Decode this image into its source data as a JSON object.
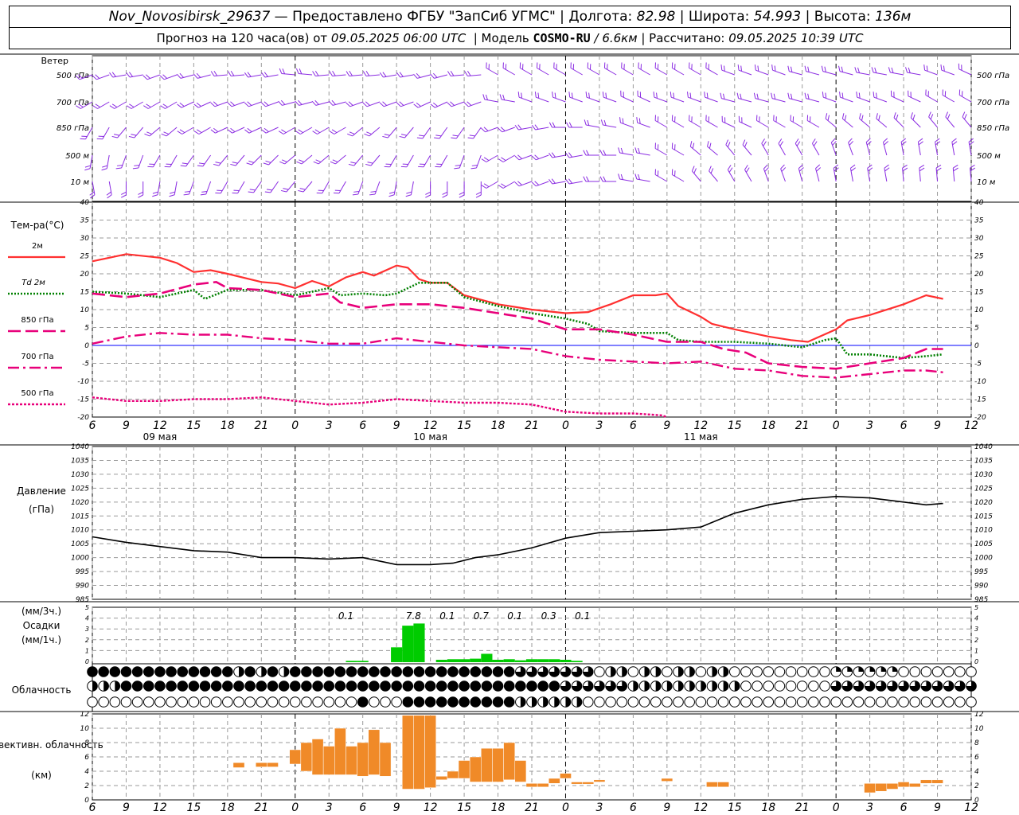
{
  "header": {
    "station": "Nov_Novosibirsk_29637",
    "provider": "— Предоставлено ФГБУ \"ЗапСиб УГМС\"",
    "lon_label": "Долгота:",
    "lon": "82.98",
    "lat_label": "Широта:",
    "lat": "54.993",
    "alt_label": "Высота:",
    "alt": "136м",
    "forecast_label": "Прогноз на 120 часа(ов) от",
    "forecast_start": "09.05.2025 06:00 UTC",
    "model_label": "Модель",
    "model": "COSMO-RU",
    "resolution": "/ 6.6км",
    "computed_label": "Рассчитано:",
    "computed": "09.05.2025 10:39 UTC"
  },
  "colors": {
    "temp2m": "#ff3030",
    "td2m": "#008000",
    "magenta": "#e8007a",
    "wind": "#8a2be2",
    "pressure": "#000000",
    "precip": "#00cc00",
    "convective": "#f08a28",
    "zero_line": "#0000ff",
    "grid": "#9a9a9a"
  },
  "chart_data": [
    {
      "type": "wind_barbs",
      "panel_label": "Ветер",
      "levels": [
        "500 гПа",
        "700 гПа",
        "850 гПа",
        "500 м",
        "10 м"
      ]
    },
    {
      "type": "line",
      "ylabel": "Тем-ра(°С)",
      "ylim": [
        -20,
        40
      ],
      "yticks": [
        -20,
        -15,
        -10,
        -5,
        0,
        5,
        10,
        15,
        20,
        25,
        30,
        35,
        40
      ],
      "x_hours": [
        6,
        9,
        12,
        15,
        18,
        21,
        0,
        3,
        6,
        9,
        12,
        15,
        18,
        21,
        0,
        3,
        6,
        9,
        12,
        15,
        18,
        21,
        0,
        3,
        6,
        9,
        12
      ],
      "x_start_hour_offset": 6,
      "dates": [
        {
          "label": "09 мая",
          "hour": 12
        },
        {
          "label": "10 мая",
          "hour": 36
        },
        {
          "label": "11 мая",
          "hour": 60
        }
      ],
      "series": [
        {
          "name": "2м",
          "style": "solid",
          "color": "#ff3030",
          "points": [
            [
              6,
              23.5
            ],
            [
              9,
              25.5
            ],
            [
              12,
              24.5
            ],
            [
              13.5,
              23
            ],
            [
              15,
              20.5
            ],
            [
              16.5,
              21
            ],
            [
              18,
              20
            ],
            [
              21,
              17.7
            ],
            [
              22.5,
              17.3
            ],
            [
              24,
              16
            ],
            [
              25.5,
              18
            ],
            [
              27,
              16.5
            ],
            [
              28.5,
              19
            ],
            [
              30,
              20.5
            ],
            [
              31,
              19.5
            ],
            [
              33,
              22.3
            ],
            [
              34,
              21.7
            ],
            [
              35,
              18.5
            ],
            [
              36,
              17.5
            ],
            [
              37.5,
              17.5
            ],
            [
              39,
              14
            ],
            [
              42,
              11.5
            ],
            [
              45,
              10
            ],
            [
              48,
              9
            ],
            [
              50,
              9.3
            ],
            [
              52,
              11.5
            ],
            [
              54,
              14
            ],
            [
              56,
              14
            ],
            [
              57,
              14.5
            ],
            [
              58,
              11
            ],
            [
              60,
              8
            ],
            [
              61,
              6
            ],
            [
              63,
              4.5
            ],
            [
              66,
              2.5
            ],
            [
              68,
              1.5
            ],
            [
              69.5,
              1
            ],
            [
              72,
              4.5
            ],
            [
              73,
              7
            ],
            [
              75,
              8.5
            ],
            [
              78,
              11.5
            ],
            [
              80,
              14
            ],
            [
              81.5,
              13
            ]
          ]
        },
        {
          "name": "Td 2м",
          "style": "dotted",
          "color": "#008000",
          "points": [
            [
              6,
              15
            ],
            [
              9,
              14.5
            ],
            [
              12,
              13.5
            ],
            [
              15,
              15.5
            ],
            [
              16,
              13
            ],
            [
              18,
              15.5
            ],
            [
              21,
              15.5
            ],
            [
              24,
              14
            ],
            [
              27,
              16
            ],
            [
              28,
              14
            ],
            [
              30,
              14.5
            ],
            [
              32,
              14
            ],
            [
              33,
              14.5
            ],
            [
              35,
              17.5
            ],
            [
              37.5,
              17.5
            ],
            [
              39,
              13.5
            ],
            [
              42,
              11
            ],
            [
              45,
              9
            ],
            [
              48,
              7.5
            ],
            [
              50,
              6
            ],
            [
              51,
              4
            ],
            [
              54,
              3.5
            ],
            [
              57,
              3.5
            ],
            [
              58,
              1.5
            ],
            [
              60,
              1
            ],
            [
              63,
              1
            ],
            [
              66,
              0.5
            ],
            [
              69,
              -0.5
            ],
            [
              71,
              1.5
            ],
            [
              72,
              2
            ],
            [
              73,
              -2.5
            ],
            [
              75,
              -2.5
            ],
            [
              78,
              -3.5
            ],
            [
              80,
              -3
            ],
            [
              81.5,
              -2.5
            ]
          ]
        },
        {
          "name": "850 гПа",
          "style": "longdash",
          "color": "#e8007a",
          "points": [
            [
              6,
              14.5
            ],
            [
              9,
              13.5
            ],
            [
              12,
              14.5
            ],
            [
              15,
              17
            ],
            [
              17,
              17.7
            ],
            [
              18,
              16
            ],
            [
              21,
              15.5
            ],
            [
              24,
              13.5
            ],
            [
              27,
              14.5
            ],
            [
              28,
              12
            ],
            [
              30,
              10.5
            ],
            [
              33,
              11.5
            ],
            [
              36,
              11.5
            ],
            [
              39,
              10.5
            ],
            [
              42,
              9
            ],
            [
              45,
              7.5
            ],
            [
              48,
              4.5
            ],
            [
              51,
              4.5
            ],
            [
              54,
              3
            ],
            [
              57,
              1
            ],
            [
              60,
              1
            ],
            [
              62,
              -1
            ],
            [
              64,
              -2
            ],
            [
              66,
              -5
            ],
            [
              69,
              -6
            ],
            [
              72,
              -6.5
            ],
            [
              75,
              -5
            ],
            [
              78,
              -3.5
            ],
            [
              80,
              -1
            ],
            [
              81.5,
              -1
            ]
          ]
        },
        {
          "name": "700 гПа",
          "style": "dashdot",
          "color": "#e8007a",
          "points": [
            [
              6,
              0.5
            ],
            [
              9,
              2.5
            ],
            [
              12,
              3.5
            ],
            [
              15,
              3
            ],
            [
              18,
              3
            ],
            [
              21,
              2
            ],
            [
              24,
              1.5
            ],
            [
              27,
              0.5
            ],
            [
              30,
              0.5
            ],
            [
              33,
              2
            ],
            [
              36,
              1
            ],
            [
              39,
              0
            ],
            [
              42,
              -0.5
            ],
            [
              45,
              -1
            ],
            [
              48,
              -3
            ],
            [
              51,
              -4
            ],
            [
              54,
              -4.5
            ],
            [
              57,
              -5
            ],
            [
              60,
              -4.5
            ],
            [
              63,
              -6.5
            ],
            [
              66,
              -7
            ],
            [
              69,
              -8.5
            ],
            [
              72,
              -9
            ],
            [
              75,
              -8
            ],
            [
              78,
              -7
            ],
            [
              80,
              -7
            ],
            [
              81.5,
              -7.5
            ]
          ]
        },
        {
          "name": "500 гПа",
          "style": "dotted_dense",
          "color": "#e8007a",
          "points": [
            [
              6,
              -14.5
            ],
            [
              9,
              -15.5
            ],
            [
              12,
              -15.5
            ],
            [
              15,
              -15
            ],
            [
              18,
              -15
            ],
            [
              21,
              -14.5
            ],
            [
              24,
              -15.5
            ],
            [
              27,
              -16.5
            ],
            [
              30,
              -16
            ],
            [
              33,
              -15
            ],
            [
              36,
              -15.5
            ],
            [
              39,
              -16
            ],
            [
              42,
              -16
            ],
            [
              45,
              -16.5
            ],
            [
              48,
              -18.5
            ],
            [
              51,
              -19
            ],
            [
              54,
              -19
            ],
            [
              56.5,
              -19.5
            ],
            [
              57,
              -20
            ]
          ]
        }
      ]
    },
    {
      "type": "line",
      "ylabel": "Давление",
      "yunit": "(гПа)",
      "ylim": [
        985,
        1040
      ],
      "yticks": [
        985,
        990,
        995,
        1000,
        1005,
        1010,
        1015,
        1020,
        1025,
        1030,
        1035,
        1040
      ],
      "series": [
        {
          "name": "",
          "points": [
            [
              6,
              1007.5
            ],
            [
              9,
              1005.5
            ],
            [
              12,
              1004
            ],
            [
              15,
              1002.5
            ],
            [
              18,
              1002
            ],
            [
              21,
              1000
            ],
            [
              24,
              1000
            ],
            [
              27,
              999.5
            ],
            [
              30,
              1000
            ],
            [
              33,
              997.5
            ],
            [
              36,
              997.5
            ],
            [
              38,
              998
            ],
            [
              40,
              1000
            ],
            [
              42,
              1001
            ],
            [
              45,
              1003.5
            ],
            [
              48,
              1007
            ],
            [
              51,
              1009
            ],
            [
              54,
              1009.5
            ],
            [
              57,
              1010
            ],
            [
              60,
              1011
            ],
            [
              63,
              1016
            ],
            [
              66,
              1019
            ],
            [
              69,
              1021
            ],
            [
              72,
              1022
            ],
            [
              75,
              1021.5
            ],
            [
              78,
              1020
            ],
            [
              80,
              1019
            ],
            [
              81.5,
              1019.5
            ]
          ]
        }
      ]
    },
    {
      "type": "bar",
      "ylabel": "Осадки",
      "yunit_top": "(мм/3ч.)",
      "yunit_bottom": "(мм/1ч.)",
      "ylim": [
        0,
        5
      ],
      "yticks": [
        0,
        1,
        2,
        3,
        4,
        5
      ],
      "three_hour_totals": [
        "0.1",
        "7.8",
        "0.1",
        "0.7",
        "0.1",
        "0.3",
        "0.1"
      ],
      "hourly": [
        [
          29,
          0.05
        ],
        [
          30,
          0.05
        ],
        [
          33,
          1.3
        ],
        [
          34,
          3.3
        ],
        [
          35,
          3.5
        ],
        [
          37,
          0.15
        ],
        [
          38,
          0.2
        ],
        [
          39,
          0.2
        ],
        [
          40,
          0.25
        ],
        [
          41,
          0.7
        ],
        [
          42,
          0.15
        ],
        [
          43,
          0.2
        ],
        [
          44,
          0.1
        ],
        [
          45,
          0.2
        ],
        [
          46,
          0.2
        ],
        [
          47,
          0.2
        ],
        [
          48,
          0.15
        ],
        [
          49,
          0.05
        ]
      ]
    },
    {
      "type": "table",
      "panel_label": "Облачность",
      "rows": 3,
      "step_hours": 1,
      "levels_note": "upper, middle, lower"
    },
    {
      "type": "bar",
      "ylabel": "Конвективн. облачность",
      "yunit": "(км)",
      "ylim": [
        0,
        12
      ],
      "yticks": [
        0,
        2,
        4,
        6,
        8,
        10,
        12
      ],
      "segments": [
        [
          19,
          4.5,
          5.2
        ],
        [
          21,
          4.6,
          5.2
        ],
        [
          22,
          4.6,
          5.2
        ],
        [
          24,
          5,
          7
        ],
        [
          25,
          4,
          8
        ],
        [
          26,
          3.5,
          8.5
        ],
        [
          27,
          3.5,
          7.5
        ],
        [
          28,
          3.5,
          10
        ],
        [
          29,
          3.5,
          7.5
        ],
        [
          30,
          3.3,
          8
        ],
        [
          31,
          3.5,
          9.8
        ],
        [
          32,
          3.3,
          8
        ],
        [
          34,
          1.5,
          11.8
        ],
        [
          35,
          1.5,
          11.8
        ],
        [
          36,
          1.7,
          11.8
        ],
        [
          37,
          2.8,
          3.3
        ],
        [
          38,
          3,
          4
        ],
        [
          39,
          3,
          5.5
        ],
        [
          40,
          2.5,
          6
        ],
        [
          41,
          2.5,
          7.2
        ],
        [
          42,
          2.5,
          7.2
        ],
        [
          43,
          2.8,
          8
        ],
        [
          44,
          2.5,
          5.5
        ],
        [
          45,
          1.8,
          2.3
        ],
        [
          46,
          1.8,
          2.3
        ],
        [
          47,
          2.3,
          3
        ],
        [
          48,
          3,
          3.7
        ],
        [
          49,
          2.2,
          2.5
        ],
        [
          50,
          2.2,
          2.5
        ],
        [
          51,
          2.5,
          2.8
        ],
        [
          57,
          2.6,
          3
        ],
        [
          61,
          1.8,
          2.5
        ],
        [
          62,
          1.8,
          2.5
        ],
        [
          75,
          1,
          2.3
        ],
        [
          76,
          1.2,
          2.3
        ],
        [
          77,
          1.5,
          2.3
        ],
        [
          78,
          1.8,
          2.5
        ],
        [
          79,
          1.8,
          2.3
        ],
        [
          80,
          2.3,
          2.8
        ],
        [
          81,
          2.3,
          2.8
        ]
      ]
    }
  ]
}
